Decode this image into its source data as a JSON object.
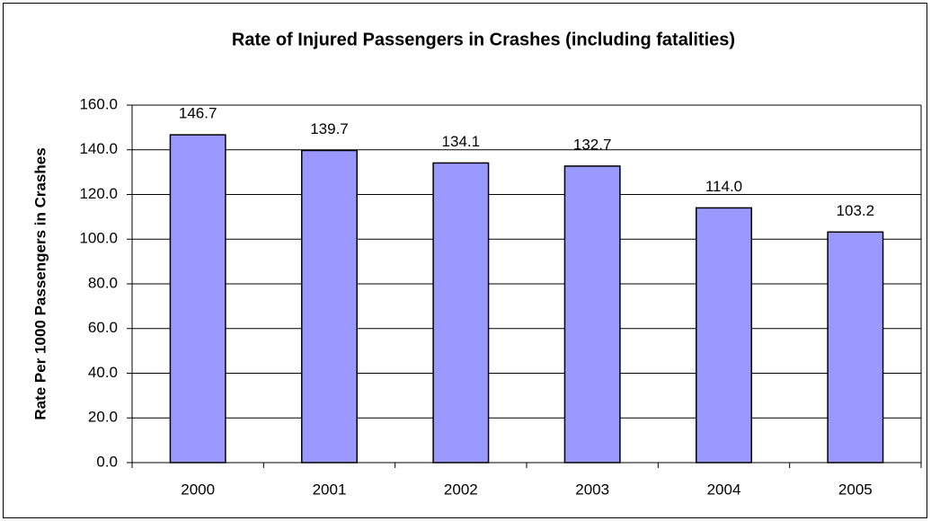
{
  "chart_data": {
    "type": "bar",
    "title": "Rate of Injured Passengers in Crashes (including fatalities)",
    "y_label": "Rate Per 1000 Passengers in Crashes",
    "categories": [
      "2000",
      "2001",
      "2002",
      "2003",
      "2004",
      "2005"
    ],
    "values": [
      146.7,
      139.7,
      134.1,
      132.7,
      114.0,
      103.2
    ],
    "value_labels": [
      "146.7",
      "139.7",
      "134.1",
      "132.7",
      "114.0",
      "103.2"
    ],
    "color": "#9999ff",
    "ylim": [
      0,
      160
    ],
    "yticks": [
      {
        "value": 0,
        "label": "0.0"
      },
      {
        "value": 20,
        "label": "20.0"
      },
      {
        "value": 40,
        "label": "40.0"
      },
      {
        "value": 60,
        "label": "60.0"
      },
      {
        "value": 80,
        "label": "80.0"
      },
      {
        "value": 100,
        "label": "100.0"
      },
      {
        "value": 120,
        "label": "120.0"
      },
      {
        "value": 140,
        "label": "140.0"
      },
      {
        "value": 160,
        "label": "160.0"
      }
    ],
    "grid": true
  }
}
